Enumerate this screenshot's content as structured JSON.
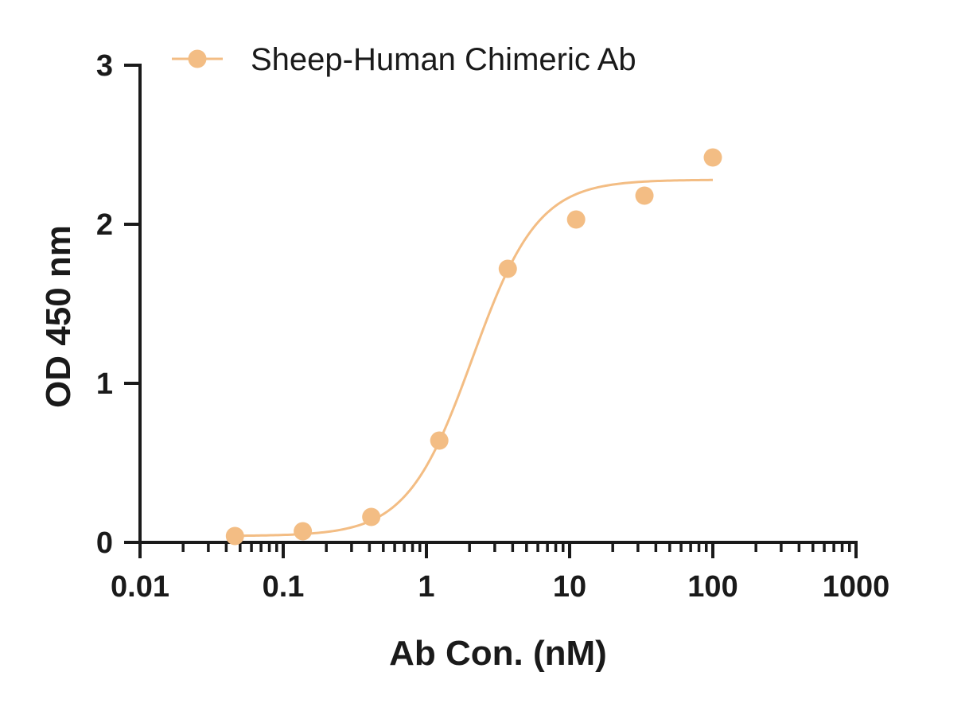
{
  "chart_data": {
    "type": "scatter",
    "title": "",
    "xlabel": "Ab Con. (nM)",
    "ylabel": "OD 450 nm",
    "x_scale": "log",
    "xlim": [
      0.01,
      1000
    ],
    "ylim": [
      0,
      3
    ],
    "x_ticks": [
      0.01,
      0.1,
      1,
      10,
      100,
      1000
    ],
    "x_tick_labels": [
      "0.01",
      "0.1",
      "1",
      "10",
      "100",
      "1000"
    ],
    "y_ticks": [
      0,
      1,
      2,
      3
    ],
    "y_tick_labels": [
      "0",
      "1",
      "2",
      "3"
    ],
    "grid": false,
    "legend": "top",
    "series": [
      {
        "name": "Sheep-Human Chimeric Ab",
        "color": "#F3BD84",
        "x": [
          0.046,
          0.137,
          0.412,
          1.23,
          3.7,
          11.1,
          33.3,
          100
        ],
        "y": [
          0.04,
          0.07,
          0.16,
          0.64,
          1.72,
          2.03,
          2.18,
          2.42
        ],
        "fit": {
          "model": "4PL",
          "bottom": 0.04,
          "top": 2.28,
          "ec50": 2.1,
          "hill": 1.9,
          "x_range": [
            0.046,
            100
          ]
        }
      }
    ]
  }
}
